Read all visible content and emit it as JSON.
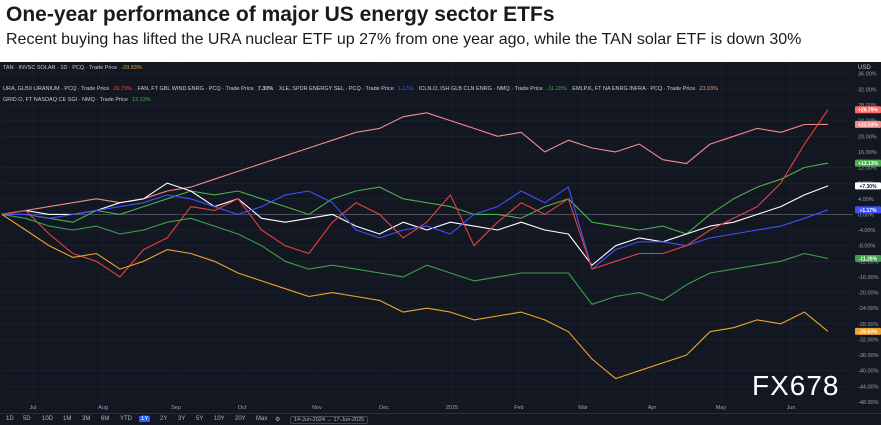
{
  "header": {
    "title": "One-year performance of major US energy sector ETFs",
    "subtitle": "Recent buying has lifted the URA nuclear ETF up 27% from one year ago, while the TAN solar ETF is down 30%"
  },
  "legend": {
    "row1": [
      {
        "text": "TAN · INVSC SOLAR · 1D · PCQ · Trade Price",
        "value": "-29.93%",
        "color": "#f0a32b"
      }
    ],
    "row2": [
      {
        "text": "URA, GLBX URANIUM · PCQ · Trade Price",
        "value": "26.79%",
        "color": "#e84040"
      },
      {
        "text": "FAN, FT GBL WIND ENRG · PCQ · Trade Price",
        "value": "7.30%",
        "color": "#ffffff"
      },
      {
        "text": "XLE, SPDR ENERGY SEL · PCQ · Trade Price",
        "value": "1.17%",
        "color": "#3f51ff"
      },
      {
        "text": "ICLN.O, ISH GLB CLN ENRG · NMQ · Trade Price",
        "value": "-11.28%",
        "color": "#3aa14a"
      },
      {
        "text": "EMLP.K, FT NA ENRG INFRA · PCQ · Trade Price",
        "value": "23.03%",
        "color": "#f28b8b"
      }
    ],
    "row3": [
      {
        "text": "GRID.O, FT NASDAQ CE SGI · NMQ · Trade Price",
        "value": "13.13%",
        "color": "#4caf50"
      }
    ]
  },
  "currency": "USD",
  "range_buttons": [
    "1D",
    "5D",
    "10D",
    "1M",
    "3M",
    "6M",
    "YTD",
    "1Y",
    "2Y",
    "3Y",
    "5Y",
    "10Y",
    "20Y",
    "Max"
  ],
  "active_range": "1Y",
  "date_range": "14-Jun-2024 → 17-Jun-2025",
  "watermark": "FX678",
  "chart_data": {
    "type": "line",
    "x_labels": [
      "Jul",
      "Aug",
      "Sep",
      "Oct",
      "Nov",
      "Dec",
      "2025",
      "Feb",
      "Mar",
      "Apr",
      "May",
      "Jun"
    ],
    "yticks": [
      36,
      32,
      28,
      24,
      20,
      16,
      12,
      8,
      4,
      0,
      -4,
      -8,
      -12,
      -16,
      -20,
      -24,
      -28,
      -32,
      -36,
      -40,
      -44,
      -48
    ],
    "ylim": [
      -48,
      39
    ],
    "grid": true,
    "series": [
      {
        "name": "EMLP",
        "color": "#f28b8b",
        "end_label": "+23.03%",
        "label_color": "#f28b8b",
        "values": [
          0,
          1,
          2,
          3,
          4,
          3,
          4,
          6,
          7,
          9,
          11,
          13,
          15,
          17,
          19,
          21,
          22,
          25,
          26,
          24,
          22,
          20,
          21,
          16,
          19,
          17,
          16,
          18,
          14,
          13,
          18,
          20,
          22,
          21,
          23,
          23.03
        ]
      },
      {
        "name": "GRID",
        "color": "#4caf50",
        "end_label": "+13.13%",
        "label_color": "#4caf50",
        "values": [
          0,
          0,
          -1,
          -2,
          1,
          0,
          2,
          4,
          6,
          5,
          6,
          4,
          2,
          0,
          4,
          6,
          7,
          4,
          3,
          2,
          0,
          0,
          -1,
          2,
          4,
          -2,
          -3,
          -4,
          -3,
          -5,
          0,
          4,
          7,
          9,
          12,
          13.13
        ]
      },
      {
        "name": "FAN",
        "color": "#ffffff",
        "end_label": "+7.30%",
        "label_color": "#ffffff",
        "values": [
          0,
          1,
          0,
          0,
          1,
          3,
          4,
          8,
          6,
          2,
          4,
          -1,
          -2,
          -1,
          0,
          -3,
          -5,
          -2,
          -4,
          -2,
          -3,
          -4,
          -2,
          -4,
          -5,
          -13,
          -8,
          -6,
          -7,
          -5,
          -3,
          -2,
          0,
          2,
          5,
          7.3
        ]
      },
      {
        "name": "XLE",
        "color": "#3f51ff",
        "end_label": "+1.17%",
        "label_color": "#3f51ff",
        "values": [
          0,
          0,
          -1,
          0,
          1,
          2,
          3,
          5,
          4,
          2,
          0,
          2,
          5,
          6,
          3,
          -4,
          -6,
          -4,
          -3,
          -5,
          0,
          2,
          6,
          3,
          7,
          -14,
          -9,
          -7,
          -7,
          -8,
          -6,
          -5,
          -4,
          -3,
          -1,
          1.17
        ]
      },
      {
        "name": "URA",
        "color": "#e84040",
        "end_label": "+26.79%",
        "label_color": "#ff6b6b",
        "values": [
          0,
          1,
          -5,
          -10,
          -12,
          -16,
          -9,
          -6,
          2,
          1,
          4,
          -4,
          -8,
          -10,
          -2,
          3,
          0,
          -6,
          -2,
          5,
          -8,
          -2,
          3,
          0,
          4,
          -14,
          -12,
          -10,
          -10,
          -8,
          -4,
          -1,
          2,
          8,
          18,
          26.79
        ]
      },
      {
        "name": "ICLN",
        "color": "#3aa14a",
        "end_label": "-11.28%",
        "label_color": "#3aa14a",
        "values": [
          0,
          -1,
          -3,
          -4,
          -3,
          -5,
          -4,
          -2,
          -1,
          -3,
          -5,
          -8,
          -12,
          -14,
          -13,
          -14,
          -15,
          -16,
          -13,
          -15,
          -17,
          -16,
          -15,
          -15,
          -15,
          -23,
          -21,
          -20,
          -22,
          -18,
          -15,
          -14,
          -13,
          -12,
          -10,
          -11.28
        ]
      },
      {
        "name": "TAN",
        "color": "#f0a32b",
        "end_label": "-29.93%",
        "label_color": "#f0a32b",
        "values": [
          0,
          -4,
          -8,
          -11,
          -10,
          -14,
          -12,
          -9,
          -10,
          -12,
          -15,
          -17,
          -19,
          -21,
          -20,
          -21,
          -22,
          -25,
          -24,
          -25,
          -27,
          -26,
          -25,
          -27,
          -30,
          -37,
          -42,
          -40,
          -38,
          -36,
          -30,
          -29,
          -27,
          -28,
          -25,
          -29.93
        ]
      }
    ]
  }
}
